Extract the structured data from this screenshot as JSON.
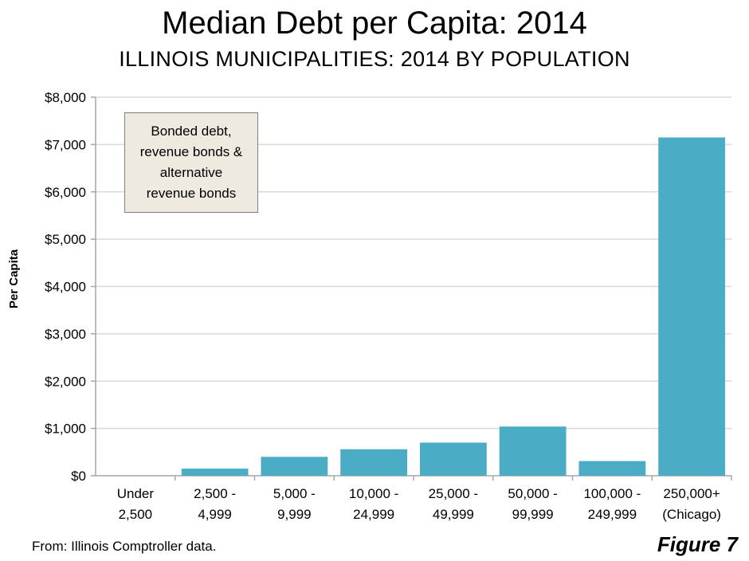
{
  "chart_data": {
    "type": "bar",
    "title": "Median Debt per Capita: 2014",
    "subtitle": "ILLINOIS MUNICIPALITIES: 2014 BY POPULATION",
    "ylabel": "Per Capita",
    "xlabel": "",
    "categories": [
      [
        "Under",
        "2,500"
      ],
      [
        "2,500 -",
        "4,999"
      ],
      [
        "5,000 -",
        "9,999"
      ],
      [
        "10,000 -",
        "24,999"
      ],
      [
        "25,000 -",
        "49,999"
      ],
      [
        "50,000 -",
        "99,999"
      ],
      [
        "100,000 -",
        "249,999"
      ],
      [
        "250,000+",
        "(Chicago)"
      ]
    ],
    "values": [
      0,
      150,
      400,
      560,
      700,
      1040,
      310,
      7150
    ],
    "ylim": [
      0,
      8000
    ],
    "yticks": [
      0,
      1000,
      2000,
      3000,
      4000,
      5000,
      6000,
      7000,
      8000
    ],
    "ytick_labels": [
      "$0",
      "$1,000",
      "$2,000",
      "$3,000",
      "$4,000",
      "$5,000",
      "$6,000",
      "$7,000",
      "$8,000"
    ],
    "grid": true,
    "bar_color": "#4bacc6",
    "annotation": "Bonded debt,\nrevenue bonds &\nalternative\nrevenue bonds"
  },
  "source": "From: Illinois  Comptroller data.",
  "figure_label": "Figure 7"
}
